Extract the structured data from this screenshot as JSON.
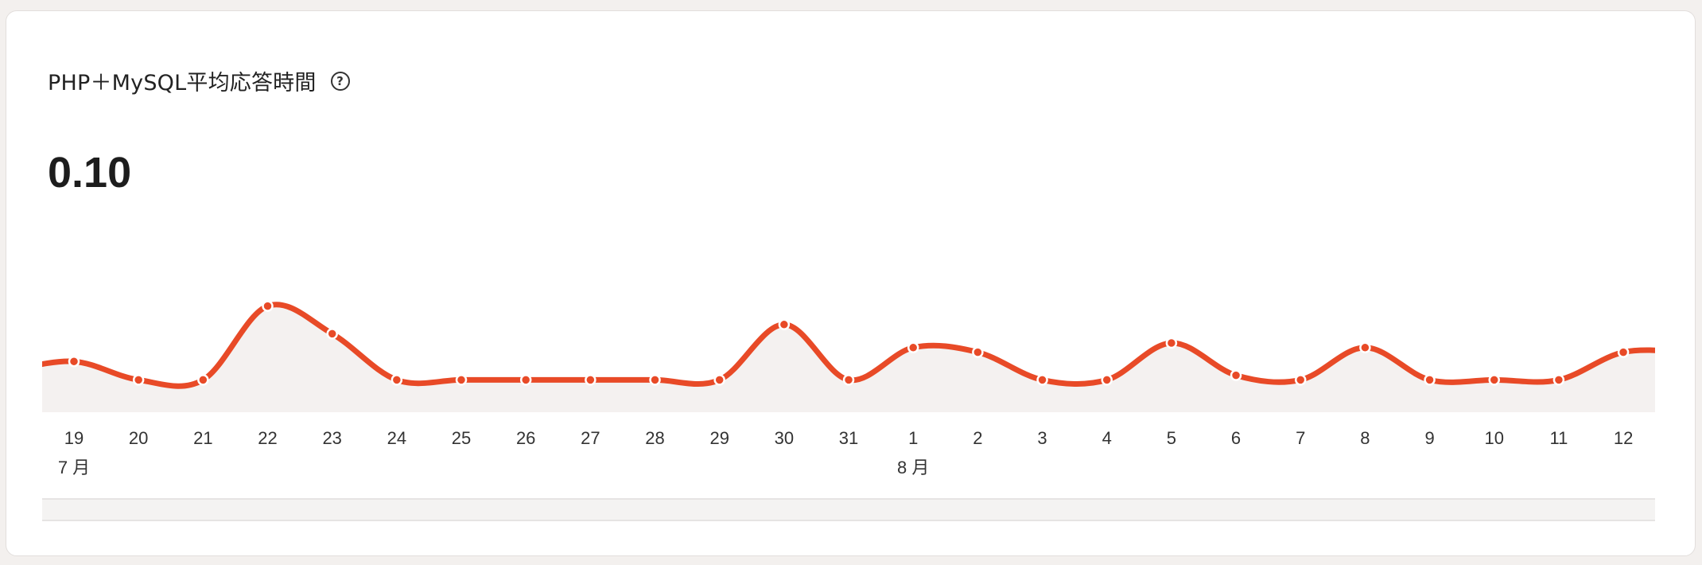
{
  "card": {
    "title": "PHP＋MySQL平均応答時間",
    "help_icon": "question-circle-icon",
    "help_glyph": "?",
    "value": "0.10"
  },
  "chart_data": {
    "type": "area",
    "title": "PHP＋MySQL平均応答時間",
    "xlabel": "",
    "ylabel": "",
    "categories": [
      "19",
      "20",
      "21",
      "22",
      "23",
      "24",
      "25",
      "26",
      "27",
      "28",
      "29",
      "30",
      "31",
      "1",
      "2",
      "3",
      "4",
      "5",
      "6",
      "7",
      "8",
      "9",
      "10",
      "11",
      "12"
    ],
    "month_labels": [
      {
        "index": 0,
        "label": "7 月"
      },
      {
        "index": 13,
        "label": "8 月"
      }
    ],
    "values": [
      0.11,
      0.07,
      0.07,
      0.23,
      0.17,
      0.07,
      0.07,
      0.07,
      0.07,
      0.07,
      0.07,
      0.19,
      0.07,
      0.14,
      0.13,
      0.07,
      0.07,
      0.15,
      0.08,
      0.07,
      0.14,
      0.07,
      0.07,
      0.07,
      0.13
    ],
    "ylim": [
      0,
      0.3
    ],
    "grid": false,
    "legend": "none",
    "colors": {
      "line": "#e84a27",
      "fill": "#f4f1f0",
      "marker_stroke": "#ffffff"
    }
  }
}
